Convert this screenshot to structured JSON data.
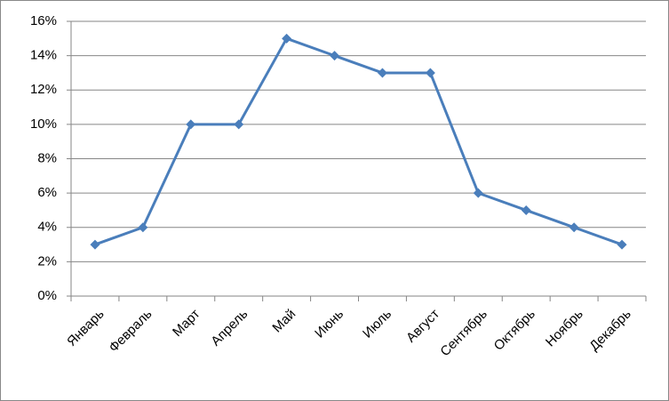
{
  "chart_data": {
    "type": "line",
    "categories": [
      "Январь",
      "Февраль",
      "Март",
      "Апрель",
      "Май",
      "Июнь",
      "Июль",
      "Август",
      "Сентябрь",
      "Октябрь",
      "Ноябрь",
      "Декабрь"
    ],
    "values": [
      3,
      4,
      10,
      10,
      15,
      14,
      13,
      13,
      6,
      5,
      4,
      3
    ],
    "color": "#4a7ebb",
    "ylim": [
      0,
      16
    ],
    "yticks": [
      {
        "value": 0,
        "label": "0%"
      },
      {
        "value": 2,
        "label": "2%"
      },
      {
        "value": 4,
        "label": "4%"
      },
      {
        "value": 6,
        "label": "6%"
      },
      {
        "value": 8,
        "label": "8%"
      },
      {
        "value": 10,
        "label": "10%"
      },
      {
        "value": 12,
        "label": "12%"
      },
      {
        "value": 14,
        "label": "14%"
      },
      {
        "value": 16,
        "label": "16%"
      }
    ],
    "grid": true
  }
}
